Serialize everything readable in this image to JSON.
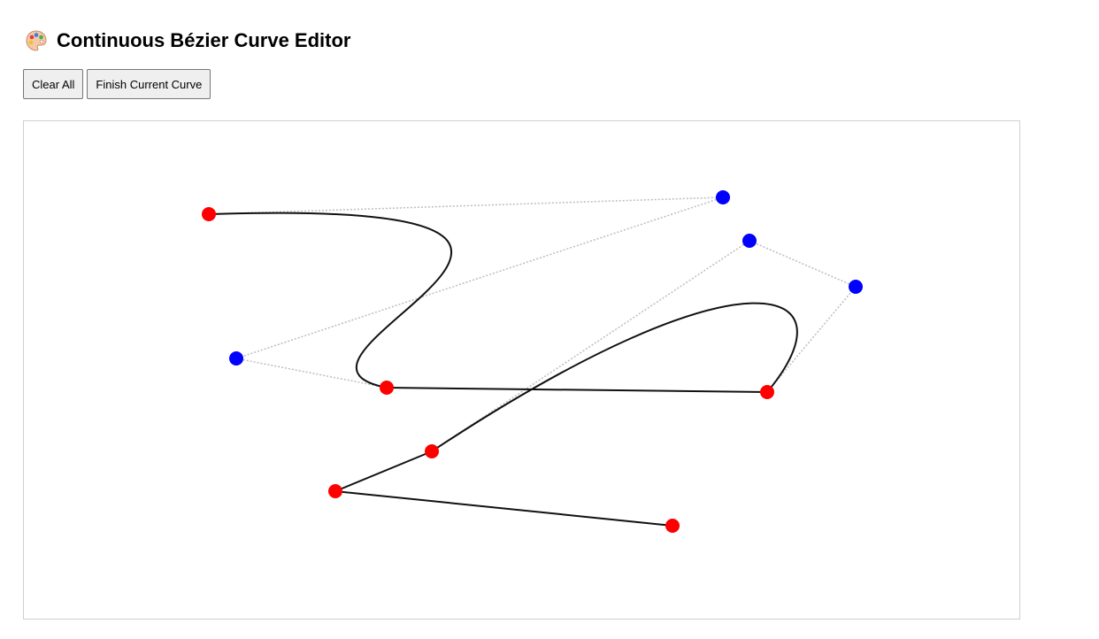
{
  "header": {
    "title": "Continuous Bézier Curve Editor",
    "icon": "artist-palette-icon"
  },
  "toolbar": {
    "clear_label": "Clear All",
    "finish_label": "Finish Current Curve"
  },
  "canvas": {
    "colors": {
      "anchor_point": "#ff0000",
      "control_point": "#0000ff",
      "curve": "#111111",
      "guide_line": "#bdbdbd"
    },
    "curves": [
      {
        "kind": "cubic",
        "start": [
          209,
          105
        ],
        "control1": [
          790,
          86
        ],
        "control2": [
          240,
          268
        ],
        "end": [
          410,
          301
        ]
      },
      {
        "kind": "line",
        "start": [
          410,
          301
        ],
        "end": [
          840,
          306
        ]
      },
      {
        "kind": "cubic",
        "start": [
          840,
          306
        ],
        "control1": [
          940,
          187
        ],
        "control2": [
          820,
          135
        ],
        "end": [
          461,
          373
        ]
      },
      {
        "kind": "line",
        "start": [
          461,
          373
        ],
        "end": [
          352,
          418
        ]
      },
      {
        "kind": "line",
        "start": [
          352,
          418
        ],
        "end": [
          733,
          457
        ]
      }
    ]
  }
}
